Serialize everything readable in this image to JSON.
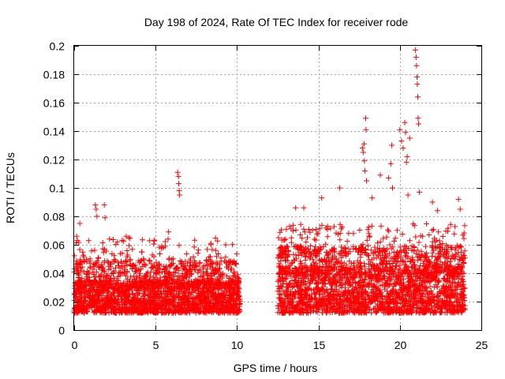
{
  "chart_data": {
    "type": "scatter",
    "title": "Day 198 of 2024, Rate Of TEC Index for receiver rode",
    "xlabel": "GPS time / hours",
    "ylabel": "ROTI / TECUs",
    "xlim": [
      0,
      25
    ],
    "ylim": [
      0,
      0.2
    ],
    "xticks": [
      0,
      5,
      10,
      15,
      20,
      25
    ],
    "yticks": [
      0,
      0.02,
      0.04,
      0.06,
      0.08,
      0.1,
      0.12,
      0.14,
      0.16,
      0.18,
      0.2
    ],
    "xtick_labels": [
      "0",
      "5",
      "10",
      "15",
      "20",
      "25"
    ],
    "ytick_labels": [
      "0",
      "0.02",
      "0.04",
      "0.06",
      "0.08",
      "0.1",
      "0.12",
      "0.14",
      "0.16",
      "0.18",
      "0.2"
    ],
    "grid": true,
    "marker": "+",
    "marker_color": "#ff0000",
    "series": [
      {
        "name": "ROTI",
        "segments": [
          {
            "x_range": [
              0.0,
              10.2
            ],
            "typical": [
              0.012,
              0.035
            ]
          },
          {
            "x_range": [
              12.5,
              24.0
            ],
            "typical": [
              0.012,
              0.045
            ]
          }
        ],
        "notable_points": [
          {
            "x": 0.15,
            "y": 0.066
          },
          {
            "x": 0.2,
            "y": 0.063
          },
          {
            "x": 0.35,
            "y": 0.075
          },
          {
            "x": 1.3,
            "y": 0.088
          },
          {
            "x": 1.35,
            "y": 0.085
          },
          {
            "x": 1.4,
            "y": 0.08
          },
          {
            "x": 1.85,
            "y": 0.088
          },
          {
            "x": 1.9,
            "y": 0.079
          },
          {
            "x": 3.2,
            "y": 0.066
          },
          {
            "x": 3.35,
            "y": 0.065
          },
          {
            "x": 5.8,
            "y": 0.069
          },
          {
            "x": 6.35,
            "y": 0.111
          },
          {
            "x": 6.4,
            "y": 0.108
          },
          {
            "x": 6.42,
            "y": 0.103
          },
          {
            "x": 6.45,
            "y": 0.098
          },
          {
            "x": 6.48,
            "y": 0.095
          },
          {
            "x": 7.6,
            "y": 0.054
          },
          {
            "x": 8.7,
            "y": 0.056
          },
          {
            "x": 9.3,
            "y": 0.06
          },
          {
            "x": 13.6,
            "y": 0.086
          },
          {
            "x": 14.1,
            "y": 0.086
          },
          {
            "x": 15.2,
            "y": 0.093
          },
          {
            "x": 16.3,
            "y": 0.1
          },
          {
            "x": 17.7,
            "y": 0.128
          },
          {
            "x": 17.75,
            "y": 0.125
          },
          {
            "x": 17.8,
            "y": 0.131
          },
          {
            "x": 17.82,
            "y": 0.119
          },
          {
            "x": 17.85,
            "y": 0.112
          },
          {
            "x": 17.9,
            "y": 0.149
          },
          {
            "x": 17.92,
            "y": 0.141
          },
          {
            "x": 17.95,
            "y": 0.105
          },
          {
            "x": 18.3,
            "y": 0.093
          },
          {
            "x": 18.8,
            "y": 0.109
          },
          {
            "x": 19.3,
            "y": 0.107
          },
          {
            "x": 19.45,
            "y": 0.117
          },
          {
            "x": 19.5,
            "y": 0.13
          },
          {
            "x": 19.55,
            "y": 0.1
          },
          {
            "x": 20.0,
            "y": 0.141
          },
          {
            "x": 20.1,
            "y": 0.133
          },
          {
            "x": 20.2,
            "y": 0.128
          },
          {
            "x": 20.3,
            "y": 0.146
          },
          {
            "x": 20.35,
            "y": 0.139
          },
          {
            "x": 20.4,
            "y": 0.118
          },
          {
            "x": 20.45,
            "y": 0.122
          },
          {
            "x": 20.5,
            "y": 0.095
          },
          {
            "x": 20.6,
            "y": 0.135
          },
          {
            "x": 20.95,
            "y": 0.197
          },
          {
            "x": 21.0,
            "y": 0.192
          },
          {
            "x": 21.02,
            "y": 0.186
          },
          {
            "x": 21.05,
            "y": 0.178
          },
          {
            "x": 21.07,
            "y": 0.173
          },
          {
            "x": 21.1,
            "y": 0.164
          },
          {
            "x": 21.12,
            "y": 0.149
          },
          {
            "x": 21.15,
            "y": 0.145
          },
          {
            "x": 21.2,
            "y": 0.097
          },
          {
            "x": 22.0,
            "y": 0.09
          },
          {
            "x": 22.3,
            "y": 0.084
          },
          {
            "x": 23.6,
            "y": 0.092
          },
          {
            "x": 23.7,
            "y": 0.085
          }
        ]
      }
    ]
  }
}
